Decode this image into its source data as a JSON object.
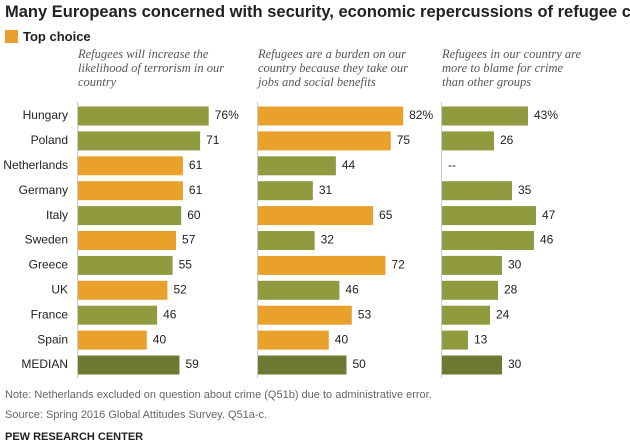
{
  "title": "Many Europeans concerned with security, economic repercussions of refugee crisis",
  "legend": {
    "label": "Top choice",
    "color": "#e9a12b"
  },
  "categories": [
    "Hungary",
    "Poland",
    "Netherlands",
    "Germany",
    "Italy",
    "Sweden",
    "Greece",
    "UK",
    "France",
    "Spain",
    "MEDIAN"
  ],
  "chart_data": [
    {
      "type": "hbar",
      "subtitle": "Refugees will increase the likelihood of terrorism in our country",
      "values": [
        76,
        71,
        61,
        61,
        60,
        57,
        55,
        52,
        46,
        40,
        59
      ],
      "value_labels": [
        "76%",
        "71",
        "61",
        "61",
        "60",
        "57",
        "55",
        "52",
        "46",
        "40",
        "59"
      ],
      "colors": [
        "#8f9b3e",
        "#8f9b3e",
        "#e9a12b",
        "#e9a12b",
        "#8f9b3e",
        "#e9a12b",
        "#8f9b3e",
        "#e9a12b",
        "#8f9b3e",
        "#e9a12b",
        "#6e7a31"
      ]
    },
    {
      "type": "hbar",
      "subtitle": "Refugees are a burden on our country because they take our jobs and social benefits",
      "values": [
        82,
        75,
        44,
        31,
        65,
        32,
        72,
        46,
        53,
        40,
        50
      ],
      "value_labels": [
        "82%",
        "75",
        "44",
        "31",
        "65",
        "32",
        "72",
        "46",
        "53",
        "40",
        "50"
      ],
      "colors": [
        "#e9a12b",
        "#e9a12b",
        "#8f9b3e",
        "#8f9b3e",
        "#e9a12b",
        "#8f9b3e",
        "#e9a12b",
        "#8f9b3e",
        "#e9a12b",
        "#e9a12b",
        "#6e7a31"
      ]
    },
    {
      "type": "hbar",
      "subtitle": "Refugees in our country are more to blame for crime than other groups",
      "values": [
        43,
        26,
        null,
        35,
        47,
        46,
        30,
        28,
        24,
        13,
        30
      ],
      "value_labels": [
        "43%",
        "26",
        "--",
        "35",
        "47",
        "46",
        "30",
        "28",
        "24",
        "13",
        "30"
      ],
      "colors": [
        "#8f9b3e",
        "#8f9b3e",
        null,
        "#8f9b3e",
        "#8f9b3e",
        "#8f9b3e",
        "#8f9b3e",
        "#8f9b3e",
        "#8f9b3e",
        "#8f9b3e",
        "#6e7a31"
      ]
    }
  ],
  "note": "Note: Netherlands excluded on question about crime (Q51b) due to administrative error.",
  "source": "Source: Spring 2016 Global Attitudes Survey. Q51a-c.",
  "credit": "PEW RESEARCH CENTER"
}
